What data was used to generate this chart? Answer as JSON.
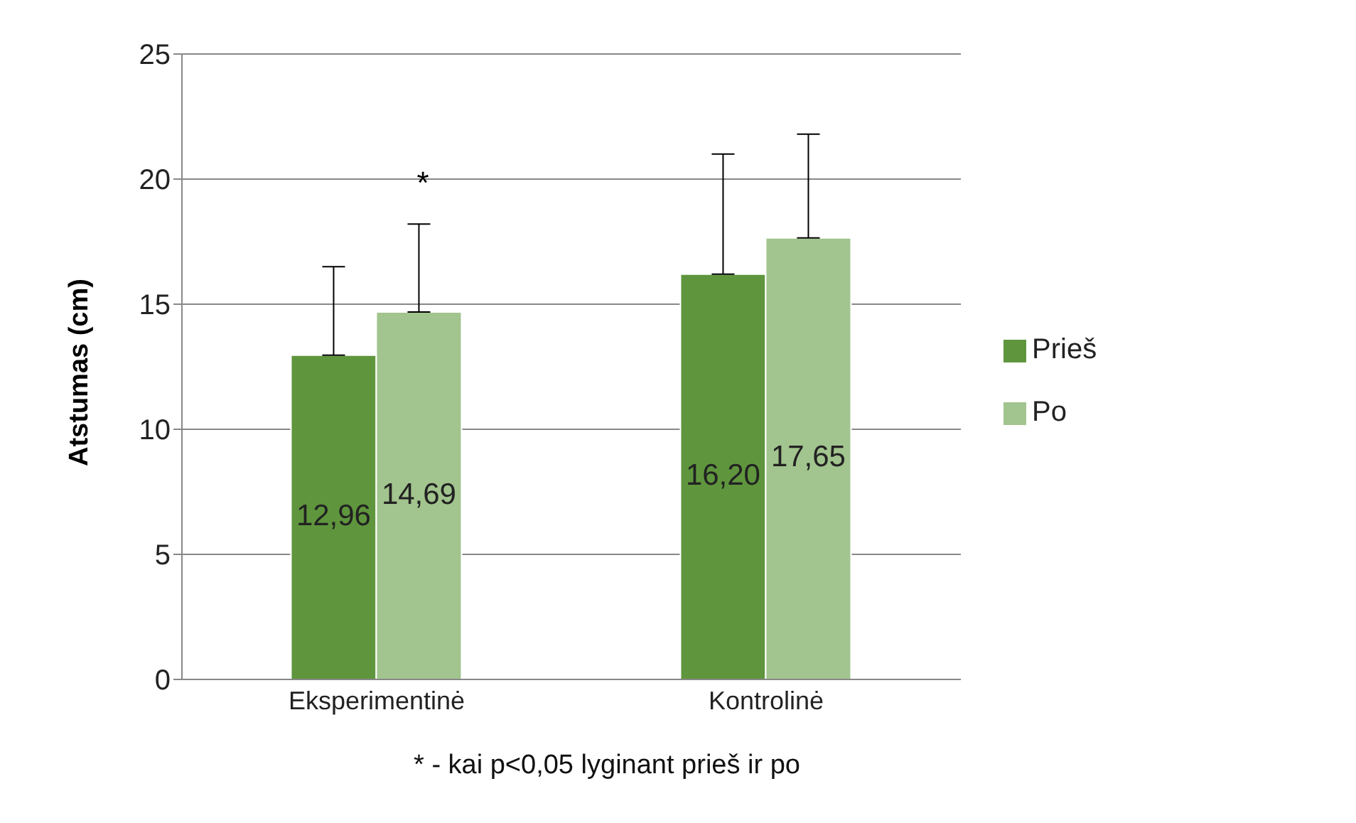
{
  "chart_data": {
    "type": "bar",
    "categories": [
      "Eksperimentinė",
      "Kontrolinė"
    ],
    "series": [
      {
        "name": "Prieš",
        "color": "#5f963d",
        "values": [
          12.96,
          16.2
        ],
        "value_labels": [
          "12,96",
          "16,20"
        ],
        "errors": [
          [
            12.96,
            16.5
          ],
          [
            16.2,
            21.0
          ]
        ]
      },
      {
        "name": "Po",
        "color": "#a2c48e",
        "values": [
          14.69,
          17.65
        ],
        "value_labels": [
          "14,69",
          "17,65"
        ],
        "errors": [
          [
            14.69,
            18.2
          ],
          [
            17.65,
            21.8
          ]
        ]
      }
    ],
    "ylabel": "Atstumas (cm)",
    "ylim": [
      0,
      25
    ],
    "yticks": [
      0,
      5,
      10,
      15,
      20,
      25
    ],
    "grid": "y",
    "legend": "right",
    "annotations": [
      "*",
      "* - kai p<0,05 lyginant prieš ir po"
    ]
  }
}
